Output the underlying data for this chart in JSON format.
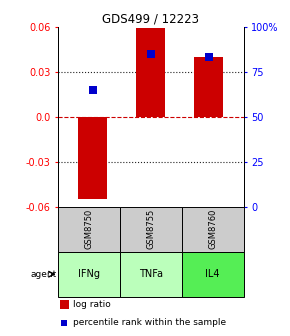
{
  "title": "GDS499 / 12223",
  "samples": [
    "GSM8750",
    "GSM8755",
    "GSM8760"
  ],
  "agents": [
    "IFNg",
    "TNFa",
    "IL4"
  ],
  "log_ratios": [
    -0.055,
    0.059,
    0.04
  ],
  "percentile_ranks": [
    0.65,
    0.85,
    0.83
  ],
  "ylim_left": [
    -0.06,
    0.06
  ],
  "ylim_right": [
    0.0,
    1.0
  ],
  "yticks_left": [
    -0.06,
    -0.03,
    0.0,
    0.03,
    0.06
  ],
  "yticks_right_vals": [
    0.0,
    0.25,
    0.5,
    0.75,
    1.0
  ],
  "yticks_right_labels": [
    "0",
    "25",
    "50",
    "75",
    "100%"
  ],
  "bar_color": "#cc0000",
  "dot_color": "#0000cc",
  "agent_colors": [
    "#bbffbb",
    "#bbffbb",
    "#55ee55"
  ],
  "sample_bg_color": "#cccccc",
  "zero_line_color": "#cc0000",
  "dotted_line_color": "#222222",
  "bar_width": 0.5,
  "dot_size": 40,
  "legend_dot_size": 20
}
